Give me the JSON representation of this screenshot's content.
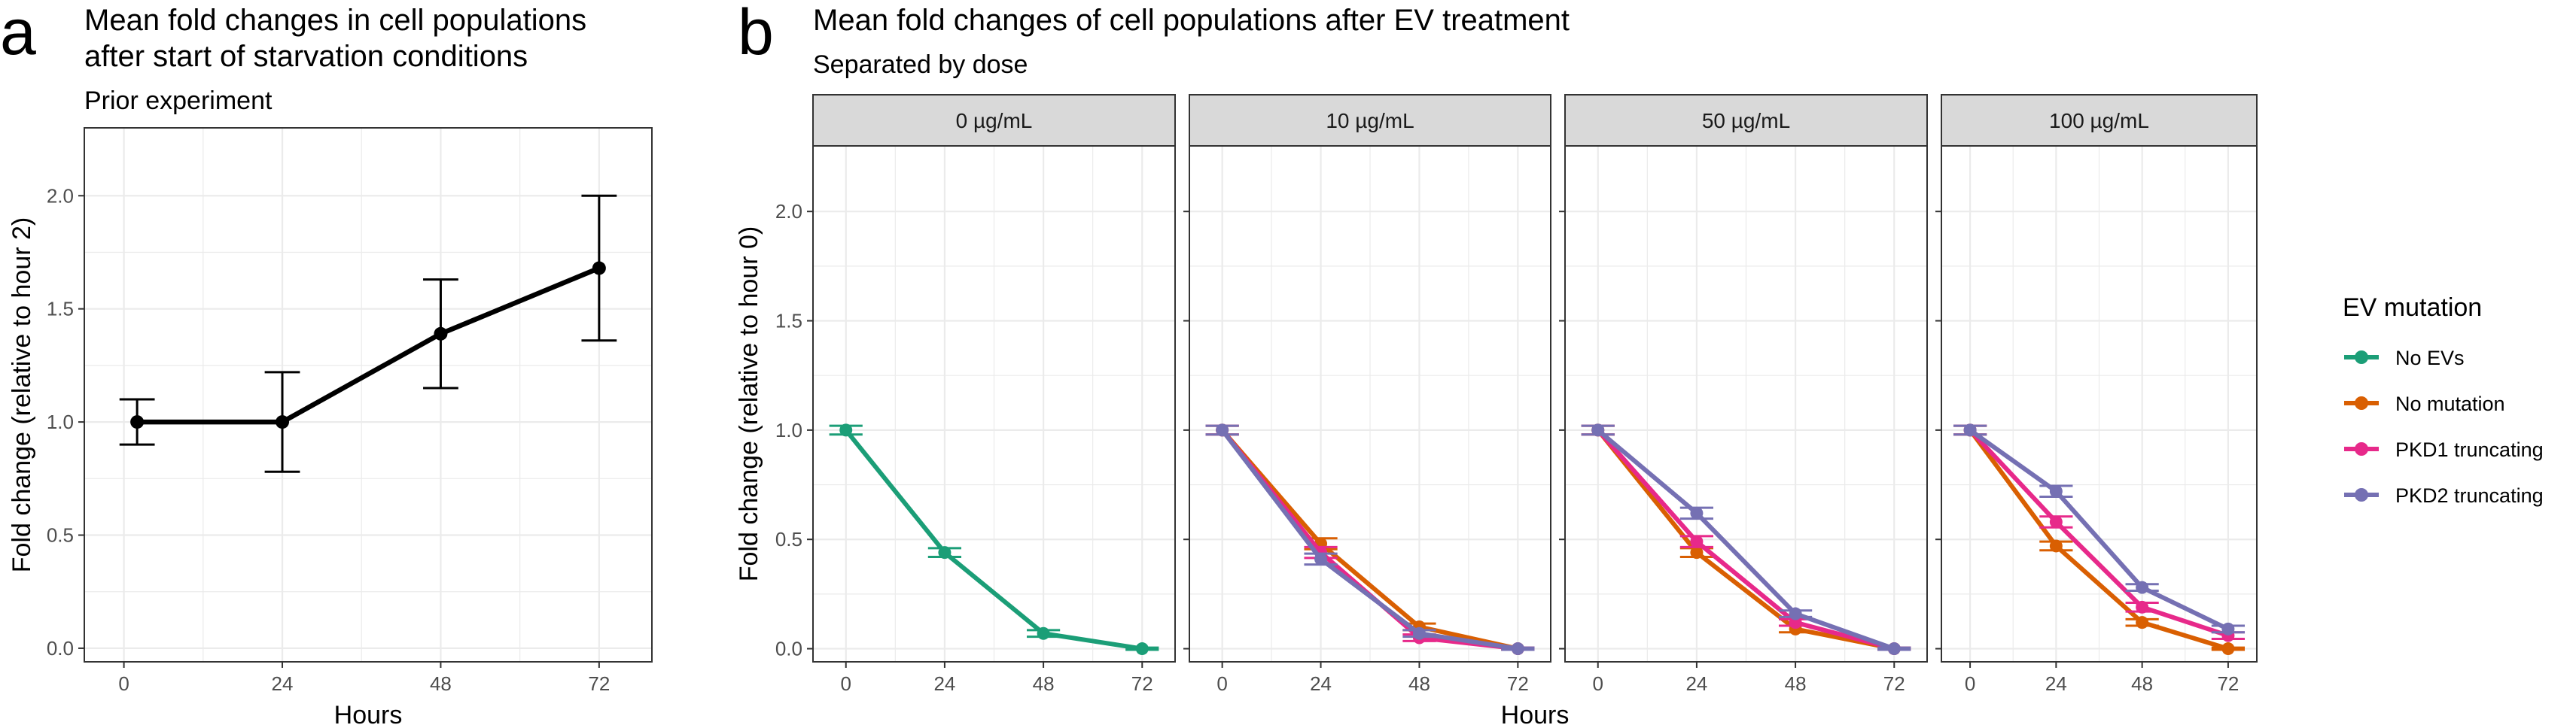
{
  "panel_a": {
    "letter": "a",
    "title_line1": "Mean fold changes in cell populations",
    "title_line2": "after start of starvation conditions",
    "subtitle": "Prior experiment"
  },
  "panel_b": {
    "letter": "b",
    "title": "Mean fold changes of cell populations after EV treatment",
    "subtitle": "Separated by dose"
  },
  "colors": {
    "No EVs": "#1b9e77",
    "No mutation": "#d95f02",
    "PKD1 truncating": "#e7298a",
    "PKD2 truncating": "#7570b3",
    "panel_a_line": "#000000",
    "strip_fill": "#d9d9d9",
    "grid": "#ebebeb"
  },
  "chart_data": [
    {
      "type": "line",
      "panel": "a",
      "title": "Mean fold changes in cell populations after start of starvation conditions",
      "subtitle": "Prior experiment",
      "xlabel": "Hours",
      "ylabel": "Fold change (relative to hour 2)",
      "x_ticks": [
        0,
        24,
        48,
        72
      ],
      "y_ticks": [
        0.0,
        0.5,
        1.0,
        1.5,
        2.0
      ],
      "y_tick_labels": [
        "0.0",
        "0.5",
        "1.0",
        "1.5",
        "2.0"
      ],
      "xlim": [
        -6,
        80
      ],
      "ylim": [
        -0.06,
        2.3
      ],
      "grid": true,
      "series": [
        {
          "x": [
            2,
            24,
            48,
            72
          ],
          "y": [
            1.0,
            1.0,
            1.39,
            1.68
          ],
          "ymin": [
            0.9,
            0.78,
            1.15,
            1.36
          ],
          "ymax": [
            1.1,
            1.22,
            1.63,
            2.0
          ]
        }
      ]
    },
    {
      "type": "line",
      "panel": "b",
      "title": "Mean fold changes of cell populations after EV treatment",
      "subtitle": "Separated by dose",
      "xlabel": "Hours",
      "ylabel": "Fold change (relative to hour 0)",
      "x_ticks": [
        0,
        24,
        48,
        72
      ],
      "y_ticks": [
        0.0,
        0.5,
        1.0,
        1.5,
        2.0
      ],
      "y_tick_labels": [
        "0.0",
        "0.5",
        "1.0",
        "1.5",
        "2.0"
      ],
      "xlim": [
        -8,
        80
      ],
      "ylim": [
        -0.06,
        2.3
      ],
      "grid": true,
      "legend": {
        "title": "EV mutation",
        "position": "right",
        "entries": [
          "No EVs",
          "No mutation",
          "PKD1 truncating",
          "PKD2 truncating"
        ]
      },
      "facets": [
        {
          "label": "0 µg/mL",
          "series": [
            {
              "name": "No EVs",
              "x": [
                0,
                24,
                48,
                72
              ],
              "y": [
                1.0,
                0.44,
                0.07,
                0.0
              ],
              "err": [
                0.02,
                0.02,
                0.015,
                0.005
              ]
            }
          ]
        },
        {
          "label": "10 µg/mL",
          "series": [
            {
              "name": "No mutation",
              "x": [
                0,
                24,
                48,
                72
              ],
              "y": [
                1.0,
                0.48,
                0.1,
                0.0
              ],
              "err": [
                0.02,
                0.025,
                0.015,
                0.005
              ]
            },
            {
              "name": "PKD1 truncating",
              "x": [
                0,
                24,
                48,
                72
              ],
              "y": [
                1.0,
                0.44,
                0.05,
                0.0
              ],
              "err": [
                0.02,
                0.025,
                0.015,
                0.005
              ]
            },
            {
              "name": "PKD2 truncating",
              "x": [
                0,
                24,
                48,
                72
              ],
              "y": [
                1.0,
                0.41,
                0.07,
                0.0
              ],
              "err": [
                0.02,
                0.025,
                0.015,
                0.005
              ]
            }
          ]
        },
        {
          "label": "50 µg/mL",
          "series": [
            {
              "name": "No mutation",
              "x": [
                0,
                24,
                48,
                72
              ],
              "y": [
                1.0,
                0.44,
                0.09,
                0.0
              ],
              "err": [
                0.02,
                0.02,
                0.015,
                0.005
              ]
            },
            {
              "name": "PKD1 truncating",
              "x": [
                0,
                24,
                48,
                72
              ],
              "y": [
                1.0,
                0.49,
                0.12,
                0.0
              ],
              "err": [
                0.02,
                0.025,
                0.015,
                0.005
              ]
            },
            {
              "name": "PKD2 truncating",
              "x": [
                0,
                24,
                48,
                72
              ],
              "y": [
                1.0,
                0.62,
                0.16,
                0.0
              ],
              "err": [
                0.02,
                0.025,
                0.015,
                0.005
              ]
            }
          ]
        },
        {
          "label": "100 µg/mL",
          "series": [
            {
              "name": "No mutation",
              "x": [
                0,
                24,
                48,
                72
              ],
              "y": [
                1.0,
                0.47,
                0.12,
                0.0
              ],
              "err": [
                0.02,
                0.02,
                0.015,
                0.005
              ]
            },
            {
              "name": "PKD1 truncating",
              "x": [
                0,
                24,
                48,
                72
              ],
              "y": [
                1.0,
                0.58,
                0.19,
                0.06
              ],
              "err": [
                0.02,
                0.025,
                0.02,
                0.015
              ]
            },
            {
              "name": "PKD2 truncating",
              "x": [
                0,
                24,
                48,
                72
              ],
              "y": [
                1.0,
                0.72,
                0.28,
                0.09
              ],
              "err": [
                0.02,
                0.025,
                0.015,
                0.015
              ]
            }
          ]
        }
      ]
    }
  ]
}
